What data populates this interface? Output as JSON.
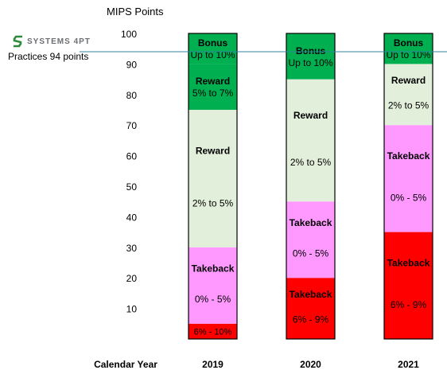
{
  "logo": {
    "text": "SYSTEMS 4PT",
    "color": "#2e8b3c"
  },
  "annotation": {
    "text": "Practices  94 points",
    "value": 94
  },
  "chart_data": {
    "type": "bar",
    "stacked": true,
    "ylabel": "MIPS Points",
    "xlabel": "Calendar Year",
    "ylim": [
      0,
      100
    ],
    "yticks": [
      10,
      20,
      30,
      40,
      50,
      60,
      70,
      80,
      90,
      100
    ],
    "categories": [
      "2019",
      "2020",
      "2021"
    ],
    "reference_line": 94,
    "bars": [
      {
        "year": "2019",
        "segments": [
          {
            "from": 0,
            "to": 5,
            "name": "",
            "range": "6% - 10%",
            "color": "#ff0000"
          },
          {
            "from": 5,
            "to": 30,
            "name": "Takeback",
            "range": "0% - 5%",
            "color": "#ff99ff"
          },
          {
            "from": 30,
            "to": 75,
            "name": "Reward",
            "range": "2% to 5%",
            "color": "#e2efda"
          },
          {
            "from": 75,
            "to": 90,
            "name": "Reward",
            "range": "5% to 7%",
            "color": "#00b050"
          },
          {
            "from": 90,
            "to": 100,
            "name": "Bonus",
            "range": "Up to 10%",
            "color": "#00b050"
          }
        ]
      },
      {
        "year": "2020",
        "segments": [
          {
            "from": 0,
            "to": 20,
            "name": "Takeback",
            "range": "6% - 9%",
            "color": "#ff0000"
          },
          {
            "from": 20,
            "to": 45,
            "name": "Takeback",
            "range": "0% - 5%",
            "color": "#ff99ff"
          },
          {
            "from": 45,
            "to": 85,
            "name": "Reward",
            "range": "2% to 5%",
            "color": "#e2efda"
          },
          {
            "from": 85,
            "to": 100,
            "name": "Bonus",
            "range": "Up to 10%",
            "color": "#00b050"
          }
        ]
      },
      {
        "year": "2021",
        "segments": [
          {
            "from": 0,
            "to": 35,
            "name": "Takeback",
            "range": "6% - 9%",
            "color": "#ff0000"
          },
          {
            "from": 35,
            "to": 70,
            "name": "Takeback",
            "range": "0% - 5%",
            "color": "#ff99ff"
          },
          {
            "from": 70,
            "to": 90,
            "name": "Reward",
            "range": "2% to 5%",
            "color": "#e2efda"
          },
          {
            "from": 90,
            "to": 100,
            "name": "Bonus",
            "range": "Up to 10%",
            "color": "#00b050"
          }
        ]
      }
    ]
  }
}
